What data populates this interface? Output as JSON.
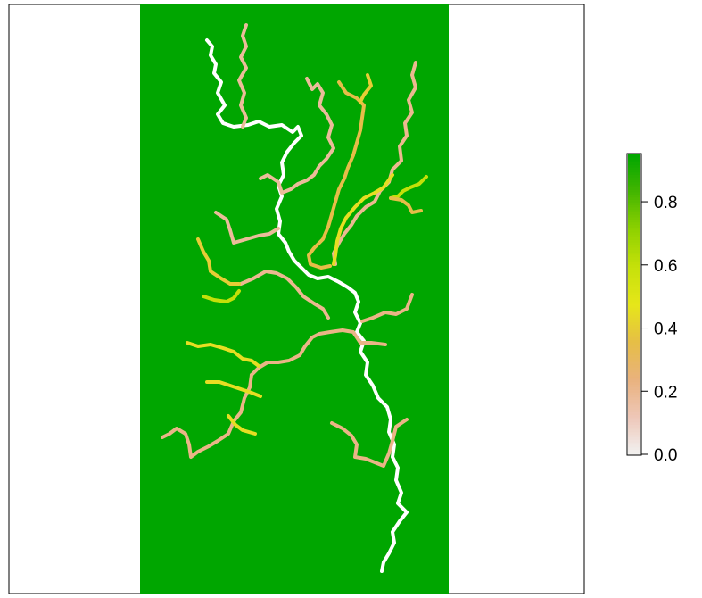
{
  "chart_data": {
    "type": "heatmap",
    "title": "",
    "xlabel": "",
    "ylabel": "",
    "background_value": 0.95,
    "colors": {
      "background_raster": "#00a600",
      "frame": "#000000",
      "palette": [
        "#f2f2f2",
        "#eec7b8",
        "#e9b27e",
        "#e6be46",
        "#e6e61a",
        "#c6e10a",
        "#8fd100",
        "#44b600",
        "#00a600"
      ]
    },
    "legend": {
      "placement": "right",
      "range": [
        0,
        0.95
      ],
      "ticks": [
        {
          "value": 0.8,
          "label": "0.8"
        },
        {
          "value": 0.6,
          "label": "0.6"
        },
        {
          "value": 0.4,
          "label": "0.4"
        },
        {
          "value": 0.2,
          "label": "0.2"
        },
        {
          "value": 0.0,
          "label": "0.0"
        }
      ]
    },
    "streams": [
      {
        "value": 0.0,
        "role": "main-channel"
      },
      {
        "value": 0.18,
        "role": "tributary"
      },
      {
        "value": 0.2,
        "role": "tributary"
      },
      {
        "value": 0.22,
        "role": "tributary"
      },
      {
        "value": 0.35,
        "role": "tributary"
      },
      {
        "value": 0.4,
        "role": "tributary"
      },
      {
        "value": 0.45,
        "role": "tributary"
      },
      {
        "value": 0.6,
        "role": "tributary"
      }
    ]
  }
}
